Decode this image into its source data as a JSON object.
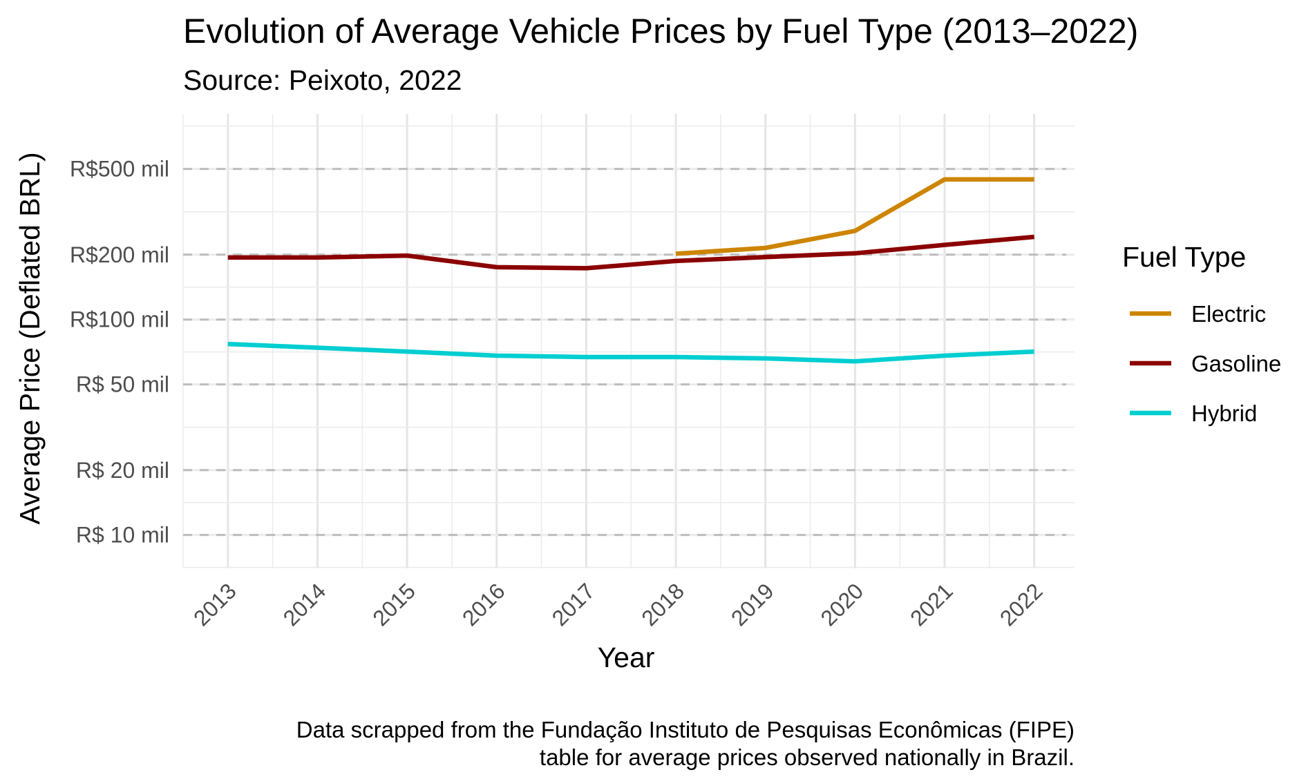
{
  "chart_data": {
    "type": "line",
    "title": "Evolution of Average Vehicle Prices by Fuel Type (2013–2022)",
    "subtitle": "Source: Peixoto, 2022",
    "xlabel": "Year",
    "ylabel": "Average Price (Deflated BRL)",
    "caption_lines": [
      "Data scrapped from the Fundação Instituto de Pesquisas Econômicas (FIPE)",
      "table for average prices observed nationally in Brazil."
    ],
    "y_scale": "log10",
    "ylim": [
      7,
      900
    ],
    "xlim": [
      2012.5,
      2022.45
    ],
    "x_ticks": [
      2013,
      2014,
      2015,
      2016,
      2017,
      2018,
      2019,
      2020,
      2021,
      2022
    ],
    "y_ticks": [
      {
        "value": 10,
        "label": "R$ 10 mil"
      },
      {
        "value": 20,
        "label": "R$ 20 mil"
      },
      {
        "value": 50,
        "label": "R$ 50 mil"
      },
      {
        "value": 100,
        "label": "R$100 mil"
      },
      {
        "value": 200,
        "label": "R$200 mil"
      },
      {
        "value": 500,
        "label": "R$500 mil"
      }
    ],
    "legend_title": "Fuel Type",
    "legend_position": "right",
    "series": [
      {
        "name": "Electric",
        "color": "#CD8500",
        "points": [
          {
            "x": 2018,
            "y": 202
          },
          {
            "x": 2019,
            "y": 215
          },
          {
            "x": 2020,
            "y": 258
          },
          {
            "x": 2021,
            "y": 447
          },
          {
            "x": 2022,
            "y": 447
          }
        ]
      },
      {
        "name": "Gasoline",
        "color": "#8B0000",
        "points": [
          {
            "x": 2013,
            "y": 194
          },
          {
            "x": 2014,
            "y": 194
          },
          {
            "x": 2015,
            "y": 198
          },
          {
            "x": 2016,
            "y": 175
          },
          {
            "x": 2017,
            "y": 173
          },
          {
            "x": 2018,
            "y": 187
          },
          {
            "x": 2019,
            "y": 195
          },
          {
            "x": 2020,
            "y": 203
          },
          {
            "x": 2021,
            "y": 222
          },
          {
            "x": 2022,
            "y": 242
          }
        ]
      },
      {
        "name": "Hybrid",
        "color": "#00CED1",
        "points": [
          {
            "x": 2013,
            "y": 77
          },
          {
            "x": 2014,
            "y": 74
          },
          {
            "x": 2015,
            "y": 71
          },
          {
            "x": 2016,
            "y": 68
          },
          {
            "x": 2017,
            "y": 67
          },
          {
            "x": 2018,
            "y": 67
          },
          {
            "x": 2019,
            "y": 66
          },
          {
            "x": 2020,
            "y": 64
          },
          {
            "x": 2021,
            "y": 68
          },
          {
            "x": 2022,
            "y": 71
          }
        ]
      }
    ],
    "grid": {
      "major": true,
      "minor": true,
      "y_major_dashed": true
    }
  }
}
